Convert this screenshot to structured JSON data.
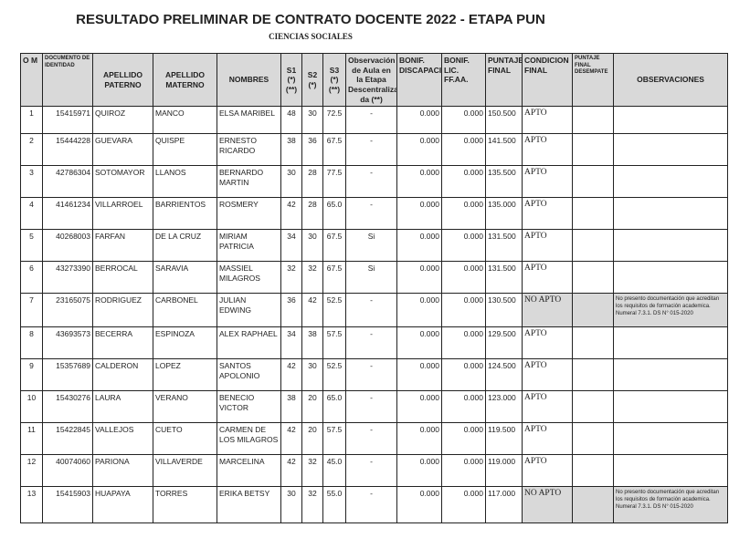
{
  "title": "RESULTADO PRELIMINAR DE CONTRATO DOCENTE 2022 - ETAPA PUN",
  "subtitle": "CIENCIAS SOCIALES",
  "headers": [
    "O\nM",
    "DOCUMENTO DE IDENTIDAD",
    "APELLIDO PATERNO",
    "APELLIDO MATERNO",
    "NOMBRES",
    "S1 (*) (**)",
    "S2 (*)",
    "S3 (*) (**)",
    "Observación de Aula en la Etapa Descentraliza da (**)",
    "BONIF. DISCAPACIDAD",
    "BONIF. LIC. FF.AA.",
    "PUNTAJE FINAL",
    "CONDICION FINAL",
    "PUNTAJE FINAL DESEMPATE",
    "OBSERVACIONES"
  ],
  "rows": [
    [
      "1",
      "15415971",
      "QUIROZ",
      "MANCO",
      "ELSA MARIBEL",
      "48",
      "30",
      "72.5",
      "-",
      "0.000",
      "0.000",
      "150.500",
      "APTO",
      "",
      ""
    ],
    [
      "2",
      "15444228",
      "GUEVARA",
      "QUISPE",
      "ERNESTO RICARDO",
      "38",
      "36",
      "67.5",
      "-",
      "0.000",
      "0.000",
      "141.500",
      "APTO",
      "",
      ""
    ],
    [
      "3",
      "42786304",
      "SOTOMAYOR",
      "LLANOS",
      "BERNARDO MARTIN",
      "30",
      "28",
      "77.5",
      "-",
      "0.000",
      "0.000",
      "135.500",
      "APTO",
      "",
      ""
    ],
    [
      "4",
      "41461234",
      "VILLARROEL",
      "BARRIENTOS",
      "ROSMERY",
      "42",
      "28",
      "65.0",
      "-",
      "0.000",
      "0.000",
      "135.000",
      "APTO",
      "",
      ""
    ],
    [
      "5",
      "40268003",
      "FARFAN",
      "DE LA CRUZ",
      "MIRIAM PATRICIA",
      "34",
      "30",
      "67.5",
      "Si",
      "0.000",
      "0.000",
      "131.500",
      "APTO",
      "",
      ""
    ],
    [
      "6",
      "43273390",
      "BERROCAL",
      "SARAVIA",
      "MASSIEL MILAGROS",
      "32",
      "32",
      "67.5",
      "Si",
      "0.000",
      "0.000",
      "131.500",
      "APTO",
      "",
      ""
    ],
    [
      "7",
      "23165075",
      "RODRIGUEZ",
      "CARBONEL",
      "JULIAN EDWING",
      "36",
      "42",
      "52.5",
      "-",
      "0.000",
      "0.000",
      "130.500",
      "NO APTO",
      "",
      "No presento documentación que acreditan los requisitos de formación academica. Numeral 7.3.1.  DS N° 015-2020"
    ],
    [
      "8",
      "43693573",
      "BECERRA",
      "ESPINOZA",
      "ALEX RAPHAEL",
      "34",
      "38",
      "57.5",
      "-",
      "0.000",
      "0.000",
      "129.500",
      "APTO",
      "",
      ""
    ],
    [
      "9",
      "15357689",
      "CALDERON",
      "LOPEZ",
      "SANTOS APOLONIO",
      "42",
      "30",
      "52.5",
      "-",
      "0.000",
      "0.000",
      "124.500",
      "APTO",
      "",
      ""
    ],
    [
      "10",
      "15430276",
      "LAURA",
      "VERANO",
      "BENECIO VICTOR",
      "38",
      "20",
      "65.0",
      "-",
      "0.000",
      "0.000",
      "123.000",
      "APTO",
      "",
      ""
    ],
    [
      "11",
      "15422845",
      "VALLEJOS",
      "CUETO",
      "CARMEN DE LOS MILAGROS",
      "42",
      "20",
      "57.5",
      "-",
      "0.000",
      "0.000",
      "119.500",
      "APTO",
      "",
      ""
    ],
    [
      "12",
      "40074060",
      "PARIONA",
      "VILLAVERDE",
      "MARCELINA",
      "42",
      "32",
      "45.0",
      "-",
      "0.000",
      "0.000",
      "119.000",
      "APTO",
      "",
      ""
    ],
    [
      "13",
      "15415903",
      "HUAPAYA",
      "TORRES",
      "ERIKA BETSY",
      "30",
      "32",
      "55.0",
      "-",
      "0.000",
      "0.000",
      "117.000",
      "NO APTO",
      "",
      "No presento documentación que acreditan los requisitos de formación academica. Numeral 7.3.1.  DS N° 015-2020"
    ]
  ]
}
